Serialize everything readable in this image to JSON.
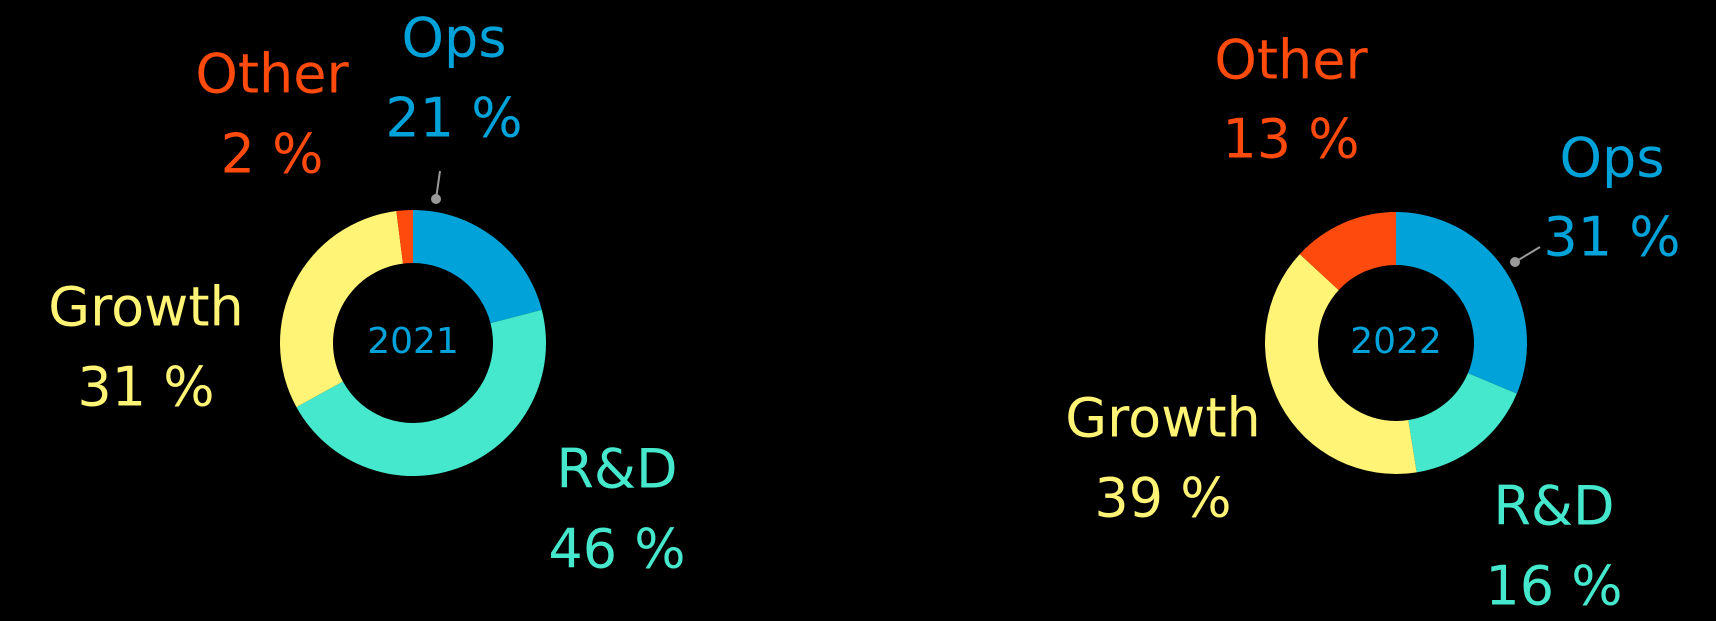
{
  "chart_data": [
    {
      "type": "pie",
      "variant": "donut",
      "center_label": "2021",
      "slices": [
        {
          "label": "Ops",
          "value": 21,
          "value_text": "21 %",
          "color": "#00A3D9"
        },
        {
          "label": "R&D",
          "value": 46,
          "value_text": "46 %",
          "color": "#45E8CC"
        },
        {
          "label": "Growth",
          "value": 31,
          "value_text": "31 %",
          "color": "#FFF475"
        },
        {
          "label": "Other",
          "value": 2,
          "value_text": "2 %",
          "color": "#FF4A0D"
        }
      ]
    },
    {
      "type": "pie",
      "variant": "donut",
      "center_label": "2022",
      "slices": [
        {
          "label": "Ops",
          "value": 31,
          "value_text": "31 %",
          "color": "#00A3D9"
        },
        {
          "label": "R&D",
          "value": 16,
          "value_text": "16 %",
          "color": "#45E8CC"
        },
        {
          "label": "Growth",
          "value": 39,
          "value_text": "39 %",
          "color": "#FFF475"
        },
        {
          "label": "Other",
          "value": 13,
          "value_text": "13 %",
          "color": "#FF4A0D"
        }
      ]
    }
  ],
  "colors": {
    "background": "#000000",
    "center_text": "#00A3D9",
    "leader_line": "#9A9A9A"
  }
}
